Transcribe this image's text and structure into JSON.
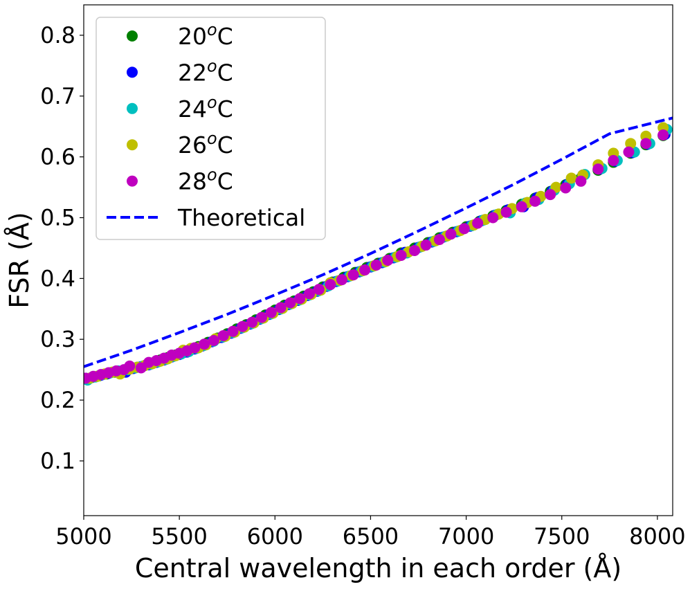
{
  "chart_data": {
    "type": "scatter",
    "title": "",
    "xlabel": "Central wavelength in each order (Å)",
    "ylabel": "FSR (Å)",
    "xlim": [
      5000,
      8080
    ],
    "ylim": [
      0.01,
      0.85
    ],
    "xticks": [
      5000,
      5500,
      6000,
      6500,
      7000,
      7500,
      8000
    ],
    "xtick_labels": [
      "5000",
      "5500",
      "6000",
      "6500",
      "7000",
      "7500",
      "8000"
    ],
    "yticks": [
      0.1,
      0.2,
      0.3,
      0.4,
      0.5,
      0.6,
      0.7,
      0.8
    ],
    "ytick_labels": [
      "0.1",
      "0.2",
      "0.3",
      "0.4",
      "0.5",
      "0.6",
      "0.7",
      "0.8"
    ],
    "grid": false,
    "legend_position": "upper-left",
    "series": [
      {
        "name": "20°C",
        "label_base": "20",
        "label_sup": "o",
        "label_unit": "C",
        "color": "#008000",
        "x": [
          5000,
          5040,
          5080,
          5120,
          5160,
          5200,
          5240,
          5280,
          5320,
          5360,
          5400,
          5440,
          5480,
          5520,
          5560,
          5600,
          5650,
          5700,
          5750,
          5800,
          5850,
          5900,
          5950,
          6000,
          6050,
          6100,
          6150,
          6200,
          6250,
          6300,
          6360,
          6420,
          6480,
          6540,
          6600,
          6660,
          6730,
          6800,
          6860,
          6930,
          7000,
          7070,
          7140,
          7210,
          7290,
          7360,
          7440,
          7520,
          7600,
          7690,
          7770,
          7860,
          7940,
          8030
        ],
        "y": [
          0.235,
          0.237,
          0.24,
          0.243,
          0.246,
          0.248,
          0.251,
          0.254,
          0.257,
          0.261,
          0.266,
          0.27,
          0.274,
          0.278,
          0.283,
          0.288,
          0.295,
          0.302,
          0.309,
          0.317,
          0.324,
          0.332,
          0.34,
          0.348,
          0.356,
          0.363,
          0.371,
          0.378,
          0.386,
          0.394,
          0.402,
          0.41,
          0.418,
          0.425,
          0.433,
          0.442,
          0.45,
          0.459,
          0.467,
          0.476,
          0.485,
          0.494,
          0.503,
          0.512,
          0.522,
          0.532,
          0.543,
          0.554,
          0.565,
          0.578,
          0.591,
          0.606,
          0.62,
          0.635
        ]
      },
      {
        "name": "22°C",
        "label_base": "22",
        "label_sup": "o",
        "label_unit": "C",
        "color": "#0000ff",
        "x": [
          5010,
          5050,
          5090,
          5130,
          5170,
          5220,
          5260,
          5300,
          5340,
          5380,
          5420,
          5460,
          5500,
          5540,
          5580,
          5620,
          5670,
          5720,
          5770,
          5820,
          5870,
          5920,
          5970,
          6020,
          6070,
          6120,
          6170,
          6220,
          6270,
          6320,
          6380,
          6440,
          6500,
          6560,
          6620,
          6680,
          6750,
          6820,
          6880,
          6950,
          7020,
          7080,
          7150,
          7220,
          7300,
          7370,
          7450,
          7530,
          7610,
          7700,
          7780,
          7870,
          7950,
          8040
        ],
        "y": [
          0.236,
          0.238,
          0.241,
          0.244,
          0.247,
          0.246,
          0.252,
          0.255,
          0.258,
          0.262,
          0.266,
          0.271,
          0.275,
          0.279,
          0.284,
          0.289,
          0.296,
          0.303,
          0.31,
          0.318,
          0.325,
          0.333,
          0.341,
          0.349,
          0.357,
          0.364,
          0.372,
          0.379,
          0.387,
          0.395,
          0.403,
          0.411,
          0.419,
          0.426,
          0.434,
          0.443,
          0.451,
          0.46,
          0.468,
          0.477,
          0.486,
          0.495,
          0.504,
          0.513,
          0.518,
          0.533,
          0.544,
          0.555,
          0.57,
          0.58,
          0.593,
          0.607,
          0.621,
          0.637
        ]
      },
      {
        "name": "24°C",
        "label_base": "24",
        "label_sup": "o",
        "label_unit": "C",
        "color": "#00bfbf",
        "x": [
          5020,
          5060,
          5100,
          5140,
          5180,
          5230,
          5270,
          5310,
          5350,
          5390,
          5430,
          5470,
          5510,
          5550,
          5590,
          5630,
          5680,
          5730,
          5780,
          5830,
          5880,
          5930,
          5980,
          6030,
          6080,
          6130,
          6180,
          6230,
          6280,
          6330,
          6390,
          6450,
          6510,
          6570,
          6630,
          6690,
          6760,
          6830,
          6890,
          6960,
          7030,
          7090,
          7160,
          7230,
          7310,
          7380,
          7460,
          7540,
          7620,
          7710,
          7790,
          7880,
          7960,
          8050
        ],
        "y": [
          0.233,
          0.238,
          0.242,
          0.245,
          0.248,
          0.25,
          0.253,
          0.256,
          0.259,
          0.263,
          0.267,
          0.272,
          0.276,
          0.28,
          0.285,
          0.29,
          0.297,
          0.304,
          0.311,
          0.319,
          0.326,
          0.334,
          0.342,
          0.35,
          0.358,
          0.365,
          0.373,
          0.38,
          0.388,
          0.396,
          0.404,
          0.412,
          0.42,
          0.427,
          0.435,
          0.442,
          0.452,
          0.461,
          0.469,
          0.478,
          0.487,
          0.496,
          0.505,
          0.508,
          0.524,
          0.53,
          0.545,
          0.556,
          0.571,
          0.581,
          0.594,
          0.608,
          0.622,
          0.645
        ]
      },
      {
        "name": "26°C",
        "label_base": "26",
        "label_sup": "o",
        "label_unit": "C",
        "color": "#bfbf00",
        "x": [
          5030,
          5070,
          5110,
          5150,
          5190,
          5240,
          5280,
          5320,
          5360,
          5400,
          5440,
          5480,
          5520,
          5560,
          5600,
          5640,
          5690,
          5740,
          5790,
          5840,
          5890,
          5940,
          5990,
          6040,
          6090,
          6140,
          6190,
          6240,
          6290,
          6340,
          6400,
          6460,
          6520,
          6580,
          6640,
          6700,
          6770,
          6840,
          6900,
          6970,
          7040,
          7100,
          7170,
          7240,
          7320,
          7390,
          7470,
          7550,
          7610,
          7690,
          7770,
          7860,
          7940,
          8030
        ],
        "y": [
          0.236,
          0.239,
          0.243,
          0.246,
          0.243,
          0.251,
          0.254,
          0.257,
          0.26,
          0.264,
          0.268,
          0.273,
          0.282,
          0.285,
          0.286,
          0.291,
          0.301,
          0.305,
          0.312,
          0.32,
          0.327,
          0.335,
          0.343,
          0.351,
          0.359,
          0.366,
          0.374,
          0.381,
          0.393,
          0.397,
          0.405,
          0.413,
          0.421,
          0.428,
          0.436,
          0.444,
          0.453,
          0.462,
          0.47,
          0.479,
          0.488,
          0.497,
          0.506,
          0.515,
          0.525,
          0.535,
          0.55,
          0.565,
          0.57,
          0.587,
          0.606,
          0.622,
          0.634,
          0.648
        ]
      },
      {
        "name": "28°C",
        "label_base": "28",
        "label_sup": "o",
        "label_unit": "C",
        "color": "#bf00bf",
        "x": [
          5010,
          5050,
          5090,
          5130,
          5170,
          5210,
          5240,
          5300,
          5340,
          5380,
          5420,
          5460,
          5500,
          5540,
          5580,
          5630,
          5680,
          5730,
          5780,
          5830,
          5880,
          5930,
          5980,
          6030,
          6080,
          6130,
          6180,
          6230,
          6290,
          6350,
          6410,
          6470,
          6530,
          6590,
          6660,
          6730,
          6790,
          6860,
          6920,
          6990,
          7060,
          7140,
          7210,
          7290,
          7360,
          7440,
          7520,
          7600,
          7690,
          7770,
          7850,
          7940,
          8030
        ],
        "y": [
          0.236,
          0.239,
          0.242,
          0.245,
          0.248,
          0.25,
          0.256,
          0.253,
          0.262,
          0.265,
          0.269,
          0.274,
          0.277,
          0.281,
          0.286,
          0.292,
          0.298,
          0.306,
          0.313,
          0.321,
          0.328,
          0.336,
          0.344,
          0.352,
          0.36,
          0.367,
          0.375,
          0.382,
          0.39,
          0.398,
          0.406,
          0.414,
          0.422,
          0.43,
          0.438,
          0.446,
          0.455,
          0.464,
          0.473,
          0.482,
          0.491,
          0.5,
          0.509,
          0.518,
          0.527,
          0.538,
          0.549,
          0.56,
          0.58,
          0.594,
          0.608,
          0.622,
          0.636
        ]
      },
      {
        "name": "Theoretical",
        "label_base": "Theoretical",
        "label_sup": "",
        "label_unit": "",
        "color": "#0000ff",
        "style": "dashed",
        "x": [
          5000,
          5250,
          5500,
          5750,
          6000,
          6250,
          6500,
          6750,
          7000,
          7250,
          7500,
          7750,
          8080
        ],
        "y": [
          0.255,
          0.282,
          0.311,
          0.341,
          0.373,
          0.406,
          0.441,
          0.478,
          0.516,
          0.555,
          0.596,
          0.638,
          0.664
        ]
      }
    ]
  }
}
